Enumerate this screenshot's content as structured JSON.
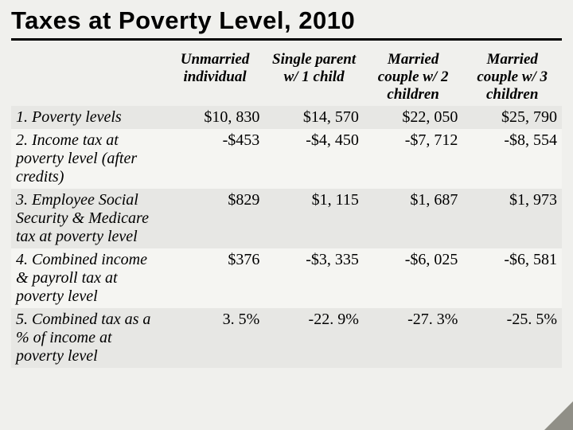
{
  "title": "Taxes at Poverty Level, 2010",
  "table": {
    "type": "table",
    "background_odd": "#e7e7e4",
    "background_even": "#f5f5f2",
    "header_bg": "#f0f0ed",
    "font_body": "Times New Roman, italic",
    "columns": [
      {
        "label": ""
      },
      {
        "label": "Unmarried individual"
      },
      {
        "label": "Single parent w/ 1 child"
      },
      {
        "label": "Married couple w/ 2 children"
      },
      {
        "label": "Married couple w/ 3 children"
      }
    ],
    "rows": [
      {
        "label": "1.  Poverty levels",
        "cells": [
          "$10, 830",
          "$14, 570",
          "$22, 050",
          "$25, 790"
        ]
      },
      {
        "label": "2.  Income tax at poverty level (after credits)",
        "cells": [
          "-$453",
          "-$4, 450",
          "-$7, 712",
          "-$8, 554"
        ]
      },
      {
        "label": "3.  Employee Social Security & Medicare tax at poverty level",
        "cells": [
          "$829",
          "$1, 115",
          "$1, 687",
          "$1, 973"
        ]
      },
      {
        "label": "4.  Combined income & payroll tax at poverty level",
        "cells": [
          "$376",
          "-$3, 335",
          "-$6, 025",
          "-$6, 581"
        ]
      },
      {
        "label": "5.  Combined tax as a % of income at poverty level",
        "cells": [
          "3. 5%",
          "-22. 9%",
          "-27. 3%",
          "-25. 5%"
        ]
      }
    ]
  },
  "colors": {
    "slide_bg": "#f0f0ed",
    "title_border": "#000000",
    "corner_fold": "#908f87"
  }
}
